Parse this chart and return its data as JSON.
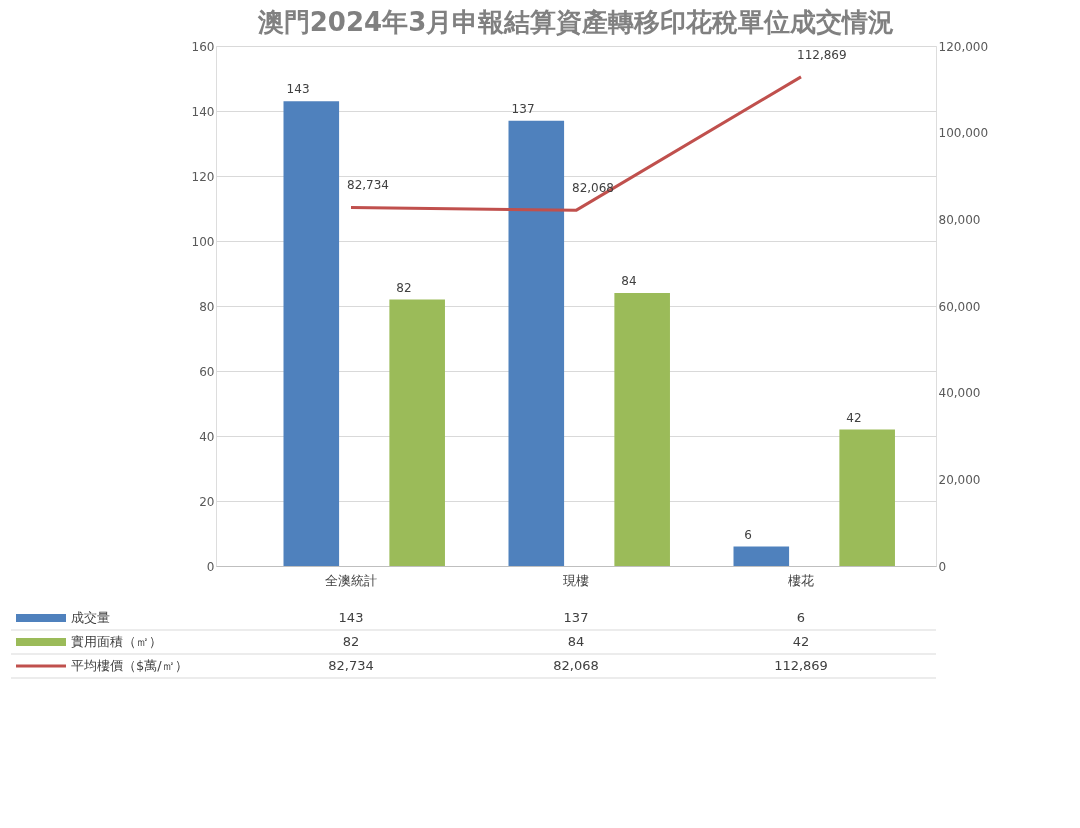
{
  "chart_data": {
    "type": "bar",
    "title": "澳門2024年3月申報結算資產轉移印花稅單位成交情況",
    "categories": [
      "全澳統計",
      "現樓",
      "樓花"
    ],
    "series": [
      {
        "name": "成交量",
        "color": "#4f81bd",
        "values": [
          143,
          137,
          6
        ],
        "value_labels": [
          "143",
          "137",
          "6"
        ]
      },
      {
        "name": "實用面積（㎡）",
        "color": "#9bbb59",
        "values": [
          82,
          84,
          42
        ],
        "value_labels": [
          "82",
          "84",
          "42"
        ]
      },
      {
        "name": "平均樓價（$萬/㎡）",
        "type": "line",
        "axis": "y2",
        "color": "#c0504d",
        "values": [
          82734,
          82068,
          112869
        ],
        "value_labels": [
          "82,734",
          "82,068",
          "112,869"
        ]
      }
    ],
    "ylim": [
      0,
      160
    ],
    "yticks": [
      0,
      20,
      40,
      60,
      80,
      100,
      120,
      140,
      160
    ],
    "y2lim": [
      0,
      120000
    ],
    "y2ticks": [
      0,
      {
        "value": 20000,
        "label": "20,000"
      },
      {
        "value": 40000,
        "label": "40,000"
      },
      {
        "value": 60000,
        "label": "60,000"
      },
      {
        "value": 80000,
        "label": "80,000"
      },
      {
        "value": 100000,
        "label": "100,000"
      },
      {
        "value": 120000,
        "label": "120,000"
      }
    ],
    "grid": "y",
    "legend": "bottom",
    "line_style": "solid"
  }
}
